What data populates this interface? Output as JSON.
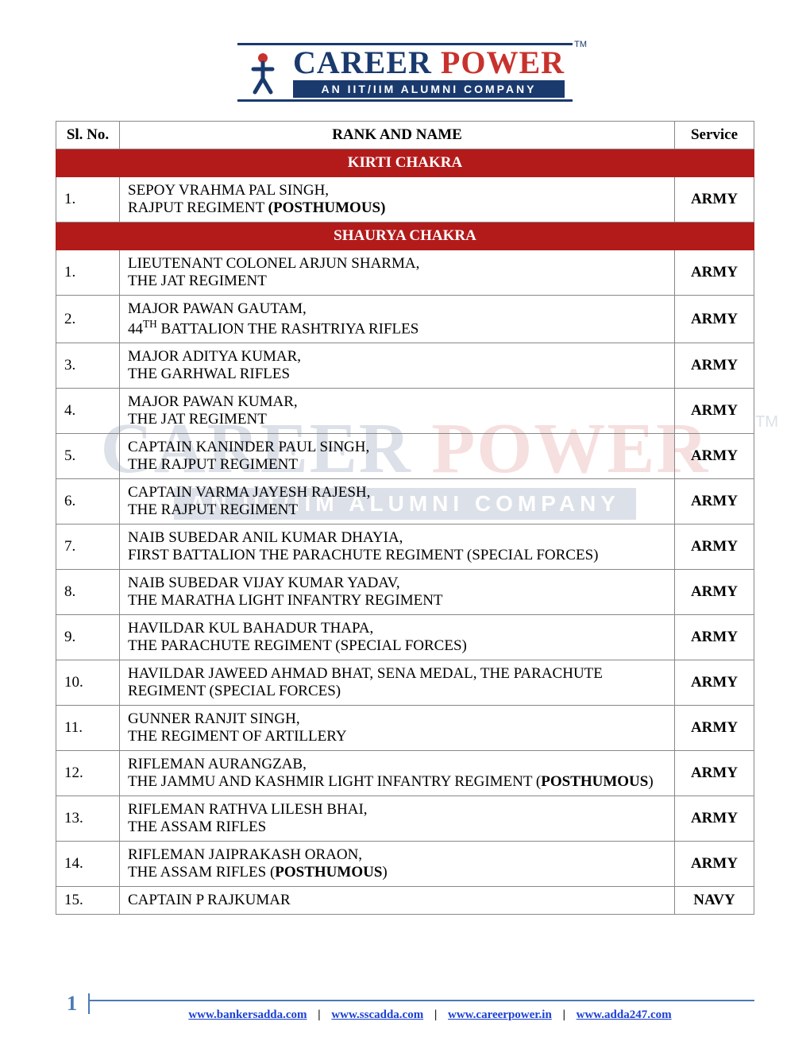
{
  "logo": {
    "title_part1": "CAREER ",
    "title_part2": "POWER",
    "subtitle": "AN IIT/IIM ALUMNI COMPANY",
    "tm": "TM"
  },
  "headers": {
    "sl": "Sl. No.",
    "name": "RANK AND NAME",
    "service": "Service"
  },
  "sections": [
    {
      "title": "KIRTI CHAKRA",
      "rows": [
        {
          "sl": "1.",
          "line1": "SEPOY VRAHMA PAL SINGH,",
          "line2_pre": "RAJPUT REGIMENT ",
          "line2_bold": "(POSTHUMOUS)",
          "service": "ARMY"
        }
      ]
    },
    {
      "title": "SHAURYA CHAKRA",
      "rows": [
        {
          "sl": "1.",
          "line1": "LIEUTENANT COLONEL ARJUN SHARMA,",
          "line2": "THE JAT REGIMENT",
          "service": "ARMY"
        },
        {
          "sl": "2.",
          "line1": "MAJOR PAWAN GAUTAM,",
          "line2_html": "44<sup>TH</sup> BATTALION THE RASHTRIYA RIFLES",
          "service": "ARMY"
        },
        {
          "sl": "3.",
          "line1": "MAJOR ADITYA KUMAR,",
          "line2": "THE GARHWAL RIFLES",
          "service": "ARMY"
        },
        {
          "sl": "4.",
          "line1": "MAJOR PAWAN KUMAR,",
          "line2": "THE JAT REGIMENT",
          "service": "ARMY"
        },
        {
          "sl": "5.",
          "line1": "CAPTAIN KANINDER PAUL SINGH,",
          "line2": "THE RAJPUT REGIMENT",
          "service": "ARMY"
        },
        {
          "sl": "6.",
          "line1": "CAPTAIN VARMA JAYESH RAJESH,",
          "line2": "THE RAJPUT REGIMENT",
          "service": "ARMY"
        },
        {
          "sl": "7.",
          "line1": "NAIB SUBEDAR ANIL KUMAR DHAYIA,",
          "line2": "FIRST BATTALION THE PARACHUTE REGIMENT (SPECIAL FORCES)",
          "service": "ARMY"
        },
        {
          "sl": "8.",
          "line1": "NAIB SUBEDAR VIJAY KUMAR YADAV,",
          "line2": "THE MARATHA LIGHT INFANTRY REGIMENT",
          "service": "ARMY"
        },
        {
          "sl": "9.",
          "line1": "HAVILDAR KUL BAHADUR THAPA,",
          "line2": "THE PARACHUTE REGIMENT (SPECIAL FORCES)",
          "service": "ARMY"
        },
        {
          "sl": "10.",
          "line1": "HAVILDAR JAWEED AHMAD BHAT, SENA MEDAL, THE PARACHUTE REGIMENT (SPECIAL FORCES)",
          "service": "ARMY"
        },
        {
          "sl": "11.",
          "line1": "GUNNER RANJIT SINGH,",
          "line2": "THE REGIMENT OF ARTILLERY",
          "service": "ARMY"
        },
        {
          "sl": "12.",
          "line1": "RIFLEMAN AURANGZAB,",
          "line2_pre": "THE JAMMU AND KASHMIR LIGHT INFANTRY REGIMENT (",
          "line2_bold": "POSTHUMOUS",
          "line2_post": ")",
          "service": "ARMY"
        },
        {
          "sl": "13.",
          "line1": "RIFLEMAN RATHVA LILESH BHAI,",
          "line2": "THE ASSAM RIFLES",
          "service": "ARMY"
        },
        {
          "sl": "14.",
          "line1": "RIFLEMAN JAIPRAKASH ORAON,",
          "line2_pre": "THE ASSAM RIFLES (",
          "line2_bold": "POSTHUMOUS",
          "line2_post": ")",
          "service": "ARMY"
        },
        {
          "sl": "15.",
          "line1": "CAPTAIN P RAJKUMAR",
          "service": "NAVY"
        }
      ]
    }
  ],
  "footer": {
    "page": "1",
    "links": [
      "www.bankersadda.com",
      "www.sscadda.com",
      "www.careerpower.in",
      "www.adda247.com"
    ],
    "sep": "|"
  },
  "colors": {
    "section_bg": "#b31b1b",
    "brand_blue": "#1a3a6e",
    "brand_red": "#c8322d",
    "link": "#1a3fd4",
    "footer_blue": "#4a7bb5"
  }
}
